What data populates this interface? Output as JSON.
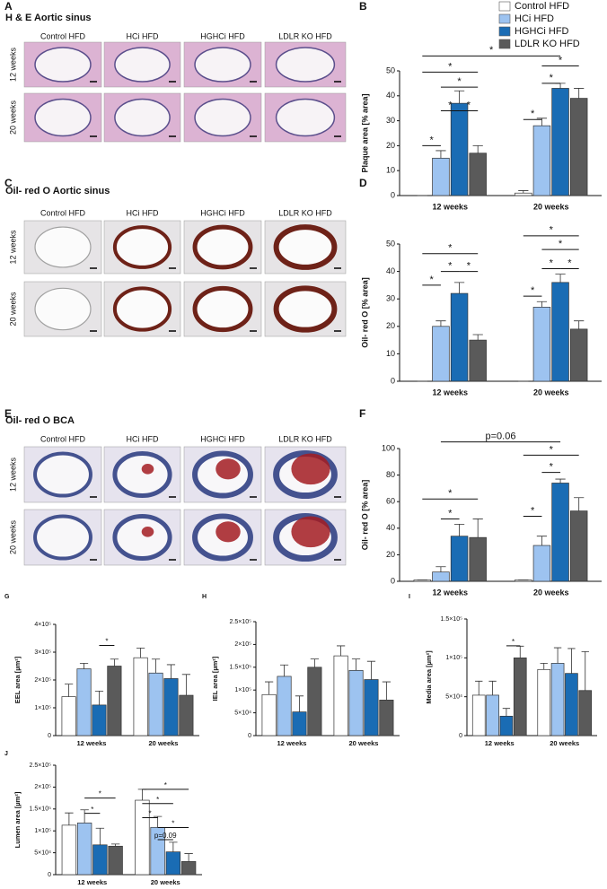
{
  "image_panels": [
    {
      "panel": "A",
      "title": "H & E Aortic sinus",
      "columns": [
        "Control HFD",
        "HCi HFD",
        "HGHCi HFD",
        "LDLR KO HFD"
      ],
      "rows": [
        "12 weeks",
        "20 weeks"
      ]
    },
    {
      "panel": "C",
      "title": "Oil- red O Aortic sinus",
      "columns": [
        "Control HFD",
        "HCi HFD",
        "HGHCi HFD",
        "LDLR KO HFD"
      ],
      "rows": [
        "12 weeks",
        "20 weeks"
      ]
    },
    {
      "panel": "E",
      "title": "Oil- red O BCA",
      "columns": [
        "Control HFD",
        "HCi HFD",
        "HGHCi HFD",
        "LDLR KO HFD"
      ],
      "rows": [
        "12 weeks",
        "20 weeks"
      ]
    }
  ],
  "chart_data": [
    {
      "type": "bar",
      "panel": "B",
      "y_label": "Plaque area [% area]",
      "categories": [
        "12 weeks",
        "20 weeks"
      ],
      "ylim": [
        0,
        50
      ],
      "yticks": [
        0,
        10,
        20,
        30,
        40,
        50
      ],
      "series": [
        {
          "name": "Control HFD",
          "color": "#ffffff",
          "values": [
            0,
            1
          ],
          "errors": [
            0,
            1
          ]
        },
        {
          "name": "HCi HFD",
          "color": "#9dc3f0",
          "values": [
            15,
            28
          ],
          "errors": [
            3,
            3
          ]
        },
        {
          "name": "HGHCi HFD",
          "color": "#1a6cb4",
          "values": [
            37,
            43
          ],
          "errors": [
            5,
            2
          ]
        },
        {
          "name": "LDLR KO HFD",
          "color": "#5a5a5a",
          "values": [
            17,
            39
          ],
          "errors": [
            3,
            4
          ]
        }
      ],
      "annotations": [
        "*",
        "*",
        "*",
        "*",
        "*",
        "*",
        "*",
        "*",
        "*"
      ]
    },
    {
      "type": "bar",
      "panel": "D",
      "y_label": "Oil- red O [% area]",
      "categories": [
        "12 weeks",
        "20 weeks"
      ],
      "ylim": [
        0,
        50
      ],
      "yticks": [
        0,
        10,
        20,
        30,
        40,
        50
      ],
      "series": [
        {
          "color": "#ffffff",
          "values": [
            0,
            0
          ],
          "errors": [
            0,
            0
          ]
        },
        {
          "color": "#9dc3f0",
          "values": [
            20,
            27
          ],
          "errors": [
            2,
            2
          ]
        },
        {
          "color": "#1a6cb4",
          "values": [
            32,
            36
          ],
          "errors": [
            4,
            3
          ]
        },
        {
          "color": "#5a5a5a",
          "values": [
            15,
            19
          ],
          "errors": [
            2,
            3
          ]
        }
      ],
      "annotations": [
        "*",
        "*",
        "*",
        "*",
        "*",
        "*",
        "*",
        "*",
        "*"
      ]
    },
    {
      "type": "bar",
      "panel": "F",
      "y_label": "Oil- red O [% area]",
      "categories": [
        "12 weeks",
        "20 weeks"
      ],
      "ylim": [
        0,
        100
      ],
      "yticks": [
        0,
        20,
        40,
        60,
        80,
        100
      ],
      "series": [
        {
          "color": "#ffffff",
          "values": [
            1,
            1
          ],
          "errors": [
            0,
            0
          ]
        },
        {
          "color": "#9dc3f0",
          "values": [
            7,
            27
          ],
          "errors": [
            4,
            7
          ]
        },
        {
          "color": "#1a6cb4",
          "values": [
            34,
            74
          ],
          "errors": [
            9,
            3
          ]
        },
        {
          "color": "#5a5a5a",
          "values": [
            33,
            53
          ],
          "errors": [
            14,
            10
          ]
        }
      ],
      "annotations": [
        "*",
        "*",
        "p=0.06",
        "*",
        "*",
        "*"
      ]
    },
    {
      "type": "bar",
      "panel": "G",
      "y_label": "EEL area [µm²]",
      "categories": [
        "12 weeks",
        "20 weeks"
      ],
      "ylim": [
        0,
        400000
      ],
      "yticks": [
        0,
        {
          "value": 100000,
          "label": "1×10⁵"
        },
        {
          "value": 200000,
          "label": "2×10⁵"
        },
        {
          "value": 300000,
          "label": "3×10⁵"
        },
        {
          "value": 400000,
          "label": "4×10⁵"
        }
      ],
      "series": [
        {
          "color": "#ffffff",
          "values": [
            140000,
            280000
          ],
          "errors": [
            45000,
            35000
          ]
        },
        {
          "color": "#9dc3f0",
          "values": [
            240000,
            225000
          ],
          "errors": [
            20000,
            50000
          ]
        },
        {
          "color": "#1a6cb4",
          "values": [
            110000,
            205000
          ],
          "errors": [
            50000,
            50000
          ]
        },
        {
          "color": "#5a5a5a",
          "values": [
            250000,
            145000
          ],
          "errors": [
            25000,
            75000
          ]
        }
      ],
      "annotations": [
        "*"
      ]
    },
    {
      "type": "bar",
      "panel": "H",
      "y_label": "IEL area [µm²]",
      "categories": [
        "12 weeks",
        "20 weeks"
      ],
      "ylim": [
        0,
        250000
      ],
      "yticks": [
        0,
        {
          "value": 50000,
          "label": "5×10⁴"
        },
        {
          "value": 100000,
          "label": "1×10⁵"
        },
        {
          "value": 150000,
          "label": "1.5×10⁵"
        },
        {
          "value": 200000,
          "label": "2×10⁵"
        },
        {
          "value": 250000,
          "label": "2.5×10⁵"
        }
      ],
      "series": [
        {
          "color": "#ffffff",
          "values": [
            90000,
            175000
          ],
          "errors": [
            28000,
            22000
          ]
        },
        {
          "color": "#9dc3f0",
          "values": [
            130000,
            143000
          ],
          "errors": [
            25000,
            25000
          ]
        },
        {
          "color": "#1a6cb4",
          "values": [
            52000,
            123000
          ],
          "errors": [
            35000,
            40000
          ]
        },
        {
          "color": "#5a5a5a",
          "values": [
            150000,
            78000
          ],
          "errors": [
            18000,
            40000
          ]
        }
      ],
      "annotations": []
    },
    {
      "type": "bar",
      "panel": "I",
      "y_label": "Media area [µm²]",
      "categories": [
        "12 weeks",
        "20 weeks"
      ],
      "ylim": [
        0,
        150000
      ],
      "yticks": [
        0,
        {
          "value": 50000,
          "label": "5×10⁴"
        },
        {
          "value": 100000,
          "label": "1×10⁵"
        },
        {
          "value": 150000,
          "label": "1.5×10⁵"
        }
      ],
      "series": [
        {
          "color": "#ffffff",
          "values": [
            52000,
            85000
          ],
          "errors": [
            18000,
            8000
          ]
        },
        {
          "color": "#9dc3f0",
          "values": [
            52000,
            93000
          ],
          "errors": [
            18000,
            20000
          ]
        },
        {
          "color": "#1a6cb4",
          "values": [
            25000,
            80000
          ],
          "errors": [
            10000,
            32000
          ]
        },
        {
          "color": "#5a5a5a",
          "values": [
            100000,
            58000
          ],
          "errors": [
            15000,
            50000
          ]
        }
      ],
      "annotations": [
        "*"
      ]
    },
    {
      "type": "bar",
      "panel": "J",
      "y_label": "Lumen area [µm²]",
      "categories": [
        "12 weeks",
        "20 weeks"
      ],
      "ylim": [
        0,
        250000
      ],
      "yticks": [
        0,
        {
          "value": 50000,
          "label": "5×10⁴"
        },
        {
          "value": 100000,
          "label": "1×10⁵"
        },
        {
          "value": 150000,
          "label": "1.5×10⁵"
        },
        {
          "value": 200000,
          "label": "2×10⁵"
        },
        {
          "value": 250000,
          "label": "2.5×10⁵"
        }
      ],
      "series": [
        {
          "color": "#ffffff",
          "values": [
            113000,
            170000
          ],
          "errors": [
            28000,
            25000
          ]
        },
        {
          "color": "#9dc3f0",
          "values": [
            118000,
            108000
          ],
          "errors": [
            30000,
            25000
          ]
        },
        {
          "color": "#1a6cb4",
          "values": [
            68000,
            52000
          ],
          "errors": [
            38000,
            22000
          ]
        },
        {
          "color": "#5a5a5a",
          "values": [
            65000,
            30000
          ],
          "errors": [
            5000,
            18000
          ]
        }
      ],
      "annotations": [
        "*",
        "*",
        "*",
        "*",
        "*",
        "*",
        "p=0.09"
      ]
    }
  ]
}
